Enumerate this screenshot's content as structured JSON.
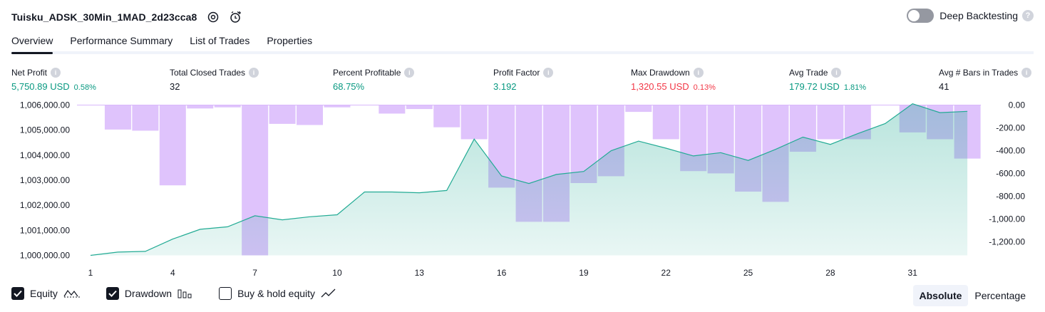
{
  "header": {
    "title": "Tuisku_ADSK_30Min_1MAD_2d23cca8",
    "deep_backtesting_label": "Deep Backtesting"
  },
  "tabs": [
    {
      "label": "Overview"
    },
    {
      "label": "Performance Summary"
    },
    {
      "label": "List of Trades"
    },
    {
      "label": "Properties"
    }
  ],
  "metrics": [
    {
      "label": "Net Profit",
      "value": "5,750.89 USD",
      "pct": "0.58%",
      "status": "pos"
    },
    {
      "label": "Total Closed Trades",
      "value": "32",
      "pct": "",
      "status": "neutral"
    },
    {
      "label": "Percent Profitable",
      "value": "68.75%",
      "pct": "",
      "status": "pos"
    },
    {
      "label": "Profit Factor",
      "value": "3.192",
      "pct": "",
      "status": "pos"
    },
    {
      "label": "Max Drawdown",
      "value": "1,320.55 USD",
      "pct": "0.13%",
      "status": "neg"
    },
    {
      "label": "Avg Trade",
      "value": "179.72 USD",
      "pct": "1.81%",
      "status": "pos"
    },
    {
      "label": "Avg # Bars in Trades",
      "value": "41",
      "pct": "",
      "status": "neutral"
    }
  ],
  "colors": {
    "positive": "#089981",
    "negative": "#f23645",
    "equity_line": "#22ab94",
    "drawdown_bar": "#d9b8fb"
  },
  "chart_data": {
    "type": "bar+area",
    "x": [
      1,
      2,
      3,
      4,
      5,
      6,
      7,
      8,
      9,
      10,
      11,
      12,
      13,
      14,
      15,
      16,
      17,
      18,
      19,
      20,
      21,
      22,
      23,
      24,
      25,
      26,
      27,
      28,
      29,
      30,
      31,
      32,
      33
    ],
    "x_ticks": [
      "1",
      "4",
      "7",
      "10",
      "13",
      "16",
      "19",
      "22",
      "25",
      "28",
      "31"
    ],
    "equity": [
      1000000,
      1000130,
      1000160,
      1000650,
      1001040,
      1001140,
      1001580,
      1001420,
      1001540,
      1001620,
      1002530,
      1002530,
      1002500,
      1002590,
      1004640,
      1003170,
      1002870,
      1003230,
      1003350,
      1004180,
      1004560,
      1004280,
      1003970,
      1004100,
      1003790,
      1004230,
      1004720,
      1004430,
      1004860,
      1005260,
      1006050,
      1005700,
      1005750
    ],
    "drawdown": [
      0,
      -215,
      -225,
      -705,
      -30,
      -20,
      -1320,
      -165,
      -175,
      -20,
      0,
      -75,
      -35,
      -195,
      -300,
      -725,
      -1025,
      -1025,
      -685,
      -625,
      -60,
      -300,
      -580,
      -600,
      -760,
      -850,
      -410,
      -300,
      -300,
      0,
      -240,
      -300,
      -470
    ],
    "y_left_ticks": [
      "1,006,000.00",
      "1,005,000.00",
      "1,004,000.00",
      "1,003,000.00",
      "1,002,000.00",
      "1,001,000.00",
      "1,000,000.00"
    ],
    "y_right_ticks": [
      "0.00",
      "-200.00",
      "-400.00",
      "-600.00",
      "-800.00",
      "-1,000.00",
      "-1,200.00"
    ],
    "ylim_left": [
      1000000,
      1006000
    ],
    "ylim_right": [
      -1320,
      0
    ]
  },
  "legend": {
    "equity_label": "Equity",
    "drawdown_label": "Drawdown",
    "buyhold_label": "Buy & hold equity"
  },
  "mode": {
    "absolute_label": "Absolute",
    "percentage_label": "Percentage"
  }
}
